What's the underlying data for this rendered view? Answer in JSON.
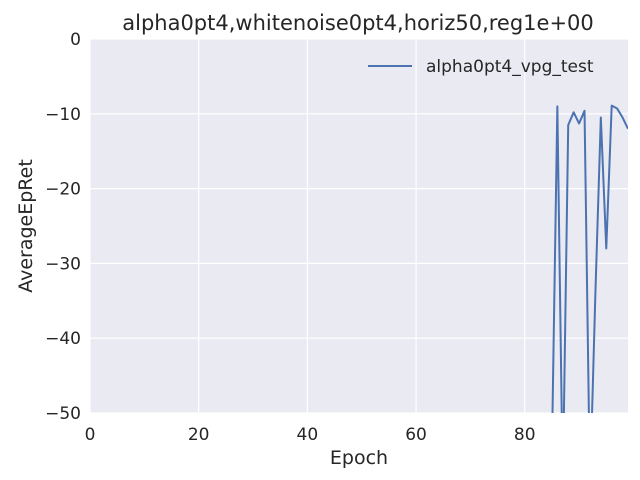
{
  "chart_data": {
    "type": "line",
    "title": "alpha0pt4,whitenoise0pt4,horiz50,reg1e+00",
    "xlabel": "Epoch",
    "ylabel": "AverageEpRet",
    "xlim": [
      0,
      99
    ],
    "ylim": [
      -50,
      0
    ],
    "xticks": [
      0,
      20,
      40,
      60,
      80
    ],
    "yticks": [
      0,
      -10,
      -20,
      -30,
      -40,
      -50
    ],
    "xtick_labels": [
      "0",
      "20",
      "40",
      "60",
      "80"
    ],
    "ytick_labels": [
      "0",
      "−10",
      "−20",
      "−30",
      "−40",
      "−50"
    ],
    "grid": true,
    "legend_position": "top-right",
    "series": [
      {
        "name": "alpha0pt4_vpg_test",
        "color": "#4c72b0",
        "x": [
          85,
          86,
          87,
          88,
          89,
          90,
          91,
          92,
          93,
          94,
          95,
          96,
          97,
          98,
          99
        ],
        "y": [
          -55,
          -9,
          -60,
          -11.5,
          -9.8,
          -11.3,
          -9.6,
          -60,
          -34,
          -10.5,
          -28,
          -8.9,
          -9.3,
          -10.5,
          -12
        ]
      }
    ]
  }
}
